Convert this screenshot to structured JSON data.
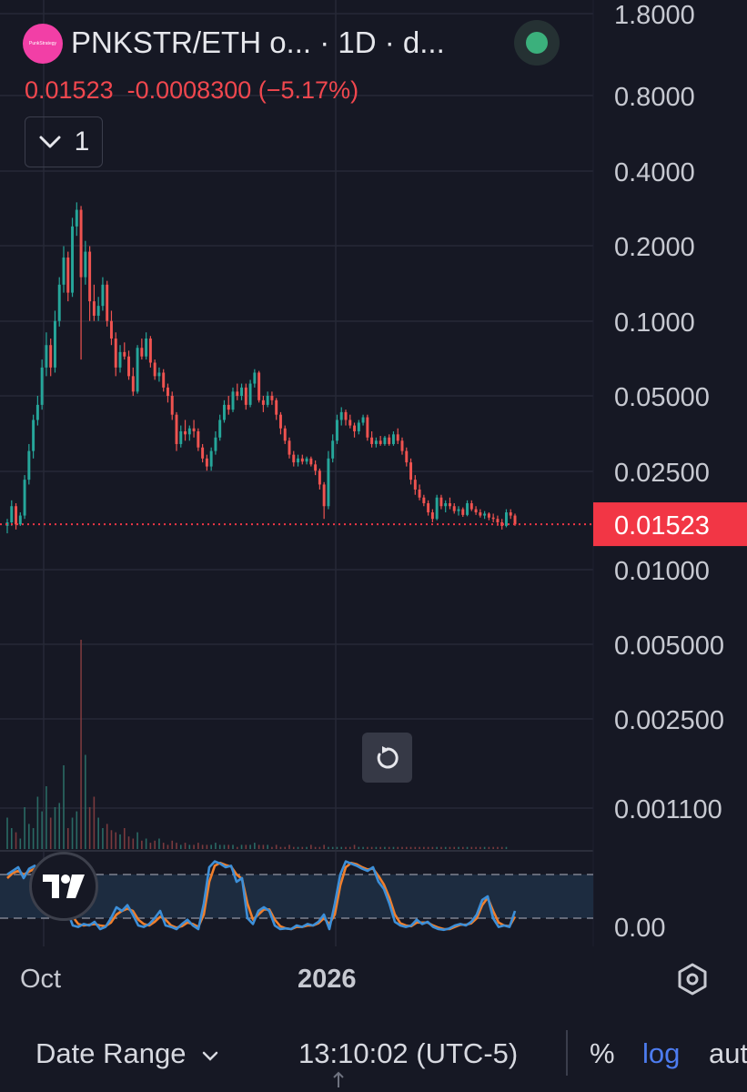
{
  "header": {
    "title": "PNKSTR/ETH o...   · 1D · d...",
    "logo_text": "PunkStrategy",
    "status_color": "#3bb07c"
  },
  "quote": {
    "price": "0.01523",
    "change": "-0.0008300",
    "change_pct": "(−5.17%)"
  },
  "controls": {
    "collapse_count": "1",
    "collapse_icon": "chevron-down-icon",
    "reset_icon": "reset-icon",
    "settings_icon": "hexagon-settings-icon"
  },
  "bottom_bar": {
    "date_range": "Date Range",
    "date_range_icon": "chevron-down-icon",
    "clock": "13:10:02 (UTC-5)",
    "percent": "%",
    "log": "log",
    "auto": "aut"
  },
  "chart_data": {
    "type": "candlestick",
    "symbol": "PNKSTR/ETH",
    "interval": "1D",
    "y_scale": "log",
    "price_axis": [
      "1.8000",
      "0.8000",
      "0.4000",
      "0.2000",
      "0.1000",
      "0.05000",
      "0.02500",
      "0.01000",
      "0.005000",
      "0.002500",
      "0.001100"
    ],
    "last_price": "0.01523",
    "x_ticks": [
      {
        "label": "Oct",
        "bold": false
      },
      {
        "label": "2026",
        "bold": true
      }
    ],
    "colors": {
      "up": "#26a69a",
      "down": "#ef5350",
      "last_price": "#f23645",
      "stoch_k": "#3d8fd8",
      "stoch_d": "#f07f2c"
    },
    "ohlc": [
      [
        0.015,
        0.016,
        0.014,
        0.0155
      ],
      [
        0.0155,
        0.019,
        0.015,
        0.018
      ],
      [
        0.018,
        0.0185,
        0.0145,
        0.0152
      ],
      [
        0.0152,
        0.017,
        0.015,
        0.0165
      ],
      [
        0.0165,
        0.024,
        0.016,
        0.023
      ],
      [
        0.023,
        0.032,
        0.022,
        0.03
      ],
      [
        0.03,
        0.042,
        0.028,
        0.04
      ],
      [
        0.04,
        0.05,
        0.038,
        0.046
      ],
      [
        0.046,
        0.07,
        0.044,
        0.065
      ],
      [
        0.065,
        0.09,
        0.06,
        0.08
      ],
      [
        0.08,
        0.085,
        0.06,
        0.065
      ],
      [
        0.065,
        0.11,
        0.062,
        0.1
      ],
      [
        0.1,
        0.15,
        0.095,
        0.14
      ],
      [
        0.14,
        0.2,
        0.13,
        0.18
      ],
      [
        0.18,
        0.19,
        0.12,
        0.13
      ],
      [
        0.13,
        0.26,
        0.125,
        0.24
      ],
      [
        0.24,
        0.3,
        0.22,
        0.28
      ],
      [
        0.28,
        0.29,
        0.07,
        0.15
      ],
      [
        0.15,
        0.21,
        0.14,
        0.19
      ],
      [
        0.19,
        0.2,
        0.1,
        0.12
      ],
      [
        0.12,
        0.14,
        0.1,
        0.105
      ],
      [
        0.105,
        0.125,
        0.1,
        0.115
      ],
      [
        0.115,
        0.15,
        0.11,
        0.14
      ],
      [
        0.14,
        0.145,
        0.095,
        0.1
      ],
      [
        0.1,
        0.11,
        0.08,
        0.085
      ],
      [
        0.085,
        0.09,
        0.06,
        0.065
      ],
      [
        0.065,
        0.08,
        0.062,
        0.075
      ],
      [
        0.075,
        0.082,
        0.07,
        0.072
      ],
      [
        0.072,
        0.076,
        0.058,
        0.06
      ],
      [
        0.06,
        0.065,
        0.05,
        0.052
      ],
      [
        0.052,
        0.08,
        0.051,
        0.078
      ],
      [
        0.078,
        0.085,
        0.07,
        0.072
      ],
      [
        0.072,
        0.09,
        0.07,
        0.085
      ],
      [
        0.085,
        0.087,
        0.065,
        0.068
      ],
      [
        0.068,
        0.07,
        0.058,
        0.06
      ],
      [
        0.06,
        0.065,
        0.057,
        0.062
      ],
      [
        0.062,
        0.064,
        0.052,
        0.054
      ],
      [
        0.054,
        0.056,
        0.047,
        0.05
      ],
      [
        0.05,
        0.052,
        0.04,
        0.042
      ],
      [
        0.042,
        0.043,
        0.03,
        0.032
      ],
      [
        0.032,
        0.038,
        0.031,
        0.036
      ],
      [
        0.036,
        0.04,
        0.033,
        0.035
      ],
      [
        0.035,
        0.038,
        0.033,
        0.037
      ],
      [
        0.037,
        0.04,
        0.034,
        0.036
      ],
      [
        0.036,
        0.037,
        0.03,
        0.031
      ],
      [
        0.031,
        0.032,
        0.027,
        0.028
      ],
      [
        0.028,
        0.029,
        0.025,
        0.026
      ],
      [
        0.026,
        0.031,
        0.025,
        0.03
      ],
      [
        0.03,
        0.036,
        0.029,
        0.034
      ],
      [
        0.034,
        0.042,
        0.033,
        0.04
      ],
      [
        0.04,
        0.048,
        0.039,
        0.046
      ],
      [
        0.046,
        0.05,
        0.042,
        0.044
      ],
      [
        0.044,
        0.054,
        0.043,
        0.052
      ],
      [
        0.052,
        0.056,
        0.048,
        0.05
      ],
      [
        0.05,
        0.056,
        0.048,
        0.054
      ],
      [
        0.054,
        0.056,
        0.044,
        0.046
      ],
      [
        0.046,
        0.058,
        0.045,
        0.056
      ],
      [
        0.056,
        0.064,
        0.054,
        0.062
      ],
      [
        0.062,
        0.063,
        0.047,
        0.048
      ],
      [
        0.048,
        0.05,
        0.043,
        0.046
      ],
      [
        0.046,
        0.052,
        0.045,
        0.05
      ],
      [
        0.05,
        0.052,
        0.046,
        0.048
      ],
      [
        0.048,
        0.049,
        0.04,
        0.042
      ],
      [
        0.042,
        0.043,
        0.035,
        0.037
      ],
      [
        0.037,
        0.038,
        0.032,
        0.033
      ],
      [
        0.033,
        0.034,
        0.028,
        0.029
      ],
      [
        0.029,
        0.03,
        0.026,
        0.027
      ],
      [
        0.027,
        0.029,
        0.026,
        0.028
      ],
      [
        0.028,
        0.029,
        0.0265,
        0.0272
      ],
      [
        0.0272,
        0.0285,
        0.0265,
        0.028
      ],
      [
        0.028,
        0.0285,
        0.026,
        0.0265
      ],
      [
        0.0265,
        0.0275,
        0.024,
        0.025
      ],
      [
        0.025,
        0.0255,
        0.021,
        0.022
      ],
      [
        0.022,
        0.0225,
        0.016,
        0.018
      ],
      [
        0.018,
        0.03,
        0.0175,
        0.028
      ],
      [
        0.028,
        0.035,
        0.027,
        0.033
      ],
      [
        0.033,
        0.042,
        0.032,
        0.04
      ],
      [
        0.04,
        0.045,
        0.038,
        0.043
      ],
      [
        0.043,
        0.044,
        0.038,
        0.04
      ],
      [
        0.04,
        0.042,
        0.037,
        0.038
      ],
      [
        0.038,
        0.039,
        0.034,
        0.036
      ],
      [
        0.036,
        0.04,
        0.035,
        0.039
      ],
      [
        0.039,
        0.042,
        0.038,
        0.041
      ],
      [
        0.041,
        0.042,
        0.033,
        0.034
      ],
      [
        0.034,
        0.036,
        0.031,
        0.032
      ],
      [
        0.032,
        0.034,
        0.031,
        0.033
      ],
      [
        0.033,
        0.0345,
        0.0315,
        0.032
      ],
      [
        0.032,
        0.0345,
        0.0315,
        0.034
      ],
      [
        0.034,
        0.035,
        0.0315,
        0.032
      ],
      [
        0.032,
        0.036,
        0.0315,
        0.035
      ],
      [
        0.035,
        0.037,
        0.032,
        0.033
      ],
      [
        0.033,
        0.034,
        0.029,
        0.03
      ],
      [
        0.03,
        0.031,
        0.026,
        0.027
      ],
      [
        0.027,
        0.028,
        0.022,
        0.023
      ],
      [
        0.023,
        0.024,
        0.02,
        0.021
      ],
      [
        0.021,
        0.022,
        0.019,
        0.0195
      ],
      [
        0.0195,
        0.02,
        0.018,
        0.0185
      ],
      [
        0.0185,
        0.019,
        0.0165,
        0.017
      ],
      [
        0.017,
        0.0175,
        0.0155,
        0.016
      ],
      [
        0.016,
        0.02,
        0.0158,
        0.0195
      ],
      [
        0.0195,
        0.02,
        0.0175,
        0.018
      ],
      [
        0.018,
        0.019,
        0.017,
        0.0185
      ],
      [
        0.0185,
        0.0195,
        0.0175,
        0.018
      ],
      [
        0.018,
        0.0185,
        0.0168,
        0.0172
      ],
      [
        0.0172,
        0.018,
        0.0165,
        0.0175
      ],
      [
        0.0175,
        0.0178,
        0.0163,
        0.0166
      ],
      [
        0.0166,
        0.019,
        0.0164,
        0.0185
      ],
      [
        0.0185,
        0.019,
        0.0172,
        0.0175
      ],
      [
        0.0175,
        0.018,
        0.0166,
        0.017
      ],
      [
        0.017,
        0.0175,
        0.0162,
        0.0165
      ],
      [
        0.0165,
        0.0172,
        0.016,
        0.0168
      ],
      [
        0.0168,
        0.017,
        0.0158,
        0.0162
      ],
      [
        0.0162,
        0.0168,
        0.0155,
        0.016
      ],
      [
        0.016,
        0.0165,
        0.015,
        0.0155
      ],
      [
        0.0155,
        0.016,
        0.0145,
        0.015
      ],
      [
        0.015,
        0.0175,
        0.0148,
        0.017
      ],
      [
        0.017,
        0.0175,
        0.016,
        0.0165
      ],
      [
        0.0165,
        0.0168,
        0.015,
        0.0152
      ]
    ],
    "volume": [
      0.15,
      0.1,
      0.08,
      0.05,
      0.2,
      0.12,
      0.1,
      0.25,
      0.18,
      0.3,
      0.15,
      0.2,
      0.22,
      0.4,
      0.1,
      0.15,
      0.18,
      1.0,
      0.45,
      0.2,
      0.25,
      0.15,
      0.1,
      0.12,
      0.09,
      0.08,
      0.07,
      0.1,
      0.06,
      0.05,
      0.08,
      0.04,
      0.05,
      0.03,
      0.04,
      0.05,
      0.03,
      0.02,
      0.04,
      0.03,
      0.02,
      0.03,
      0.02,
      0.02,
      0.03,
      0.02,
      0.02,
      0.02,
      0.03,
      0.02,
      0.02,
      0.02,
      0.02,
      0.01,
      0.02,
      0.02,
      0.02,
      0.03,
      0.02,
      0.02,
      0.02,
      0.01,
      0.02,
      0.01,
      0.01,
      0.02,
      0.01,
      0.01,
      0.01,
      0.01,
      0.02,
      0.01,
      0.01,
      0.02,
      0.01,
      0.01,
      0.01,
      0.01,
      0.01,
      0.01,
      0.02,
      0.01,
      0.01,
      0.01,
      0.01,
      0.01,
      0.01,
      0.01,
      0.01,
      0.01,
      0.01,
      0.01,
      0.01,
      0.01,
      0.01,
      0.01,
      0.01,
      0.01,
      0.01,
      0.01,
      0.01,
      0.01,
      0.01,
      0.01,
      0.01,
      0.01,
      0.01,
      0.01,
      0.01,
      0.01,
      0.01,
      0.01,
      0.01,
      0.01,
      0.01,
      0.01
    ],
    "stoch": {
      "axis_label": "0.00",
      "upper_band": 80,
      "lower_band": 20,
      "k": [
        80,
        85,
        90,
        75,
        88,
        92,
        70,
        45,
        40,
        50,
        60,
        30,
        10,
        8,
        12,
        10,
        15,
        5,
        8,
        20,
        35,
        30,
        38,
        25,
        10,
        8,
        12,
        20,
        30,
        10,
        8,
        5,
        12,
        18,
        10,
        5,
        40,
        90,
        98,
        95,
        90,
        92,
        70,
        75,
        20,
        12,
        30,
        35,
        30,
        10,
        5,
        6,
        5,
        10,
        8,
        12,
        10,
        15,
        25,
        5,
        40,
        80,
        98,
        95,
        92,
        88,
        85,
        90,
        70,
        60,
        40,
        15,
        10,
        8,
        10,
        18,
        12,
        15,
        8,
        5,
        4,
        6,
        10,
        12,
        10,
        15,
        25,
        45,
        50,
        20,
        8,
        10,
        8,
        30
      ],
      "d": [
        75,
        82,
        85,
        80,
        84,
        88,
        80,
        60,
        45,
        45,
        52,
        42,
        22,
        12,
        10,
        11,
        12,
        10,
        9,
        14,
        25,
        30,
        33,
        30,
        18,
        12,
        10,
        15,
        22,
        18,
        10,
        7,
        9,
        14,
        12,
        8,
        25,
        70,
        92,
        96,
        93,
        91,
        80,
        74,
        40,
        18,
        25,
        32,
        32,
        18,
        9,
        6,
        5,
        8,
        8,
        10,
        10,
        13,
        20,
        12,
        25,
        65,
        90,
        96,
        94,
        90,
        87,
        88,
        78,
        66,
        48,
        25,
        13,
        10,
        9,
        14,
        14,
        14,
        10,
        7,
        5,
        5,
        8,
        11,
        11,
        13,
        20,
        38,
        48,
        30,
        14,
        10,
        9,
        22
      ]
    }
  }
}
